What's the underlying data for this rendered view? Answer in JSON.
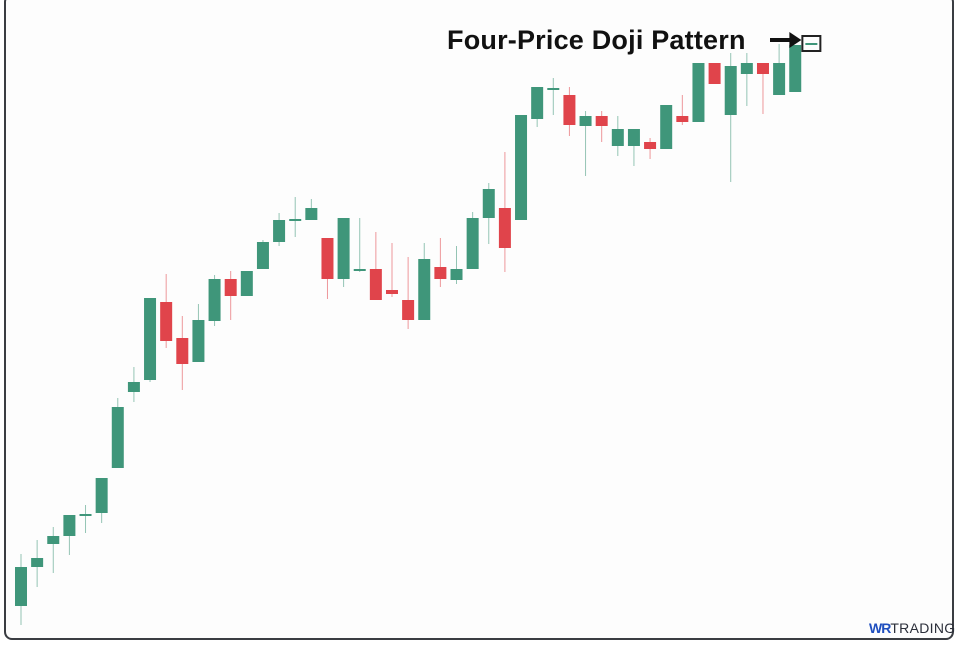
{
  "chart_data": {
    "type": "candlestick",
    "title": "",
    "annotation": "Four-Price Doji Pattern",
    "axes_visible": false,
    "grid": false,
    "colors": {
      "up": "#3f967a",
      "down": "#e0444b",
      "annotation": "#111111"
    },
    "candles": [
      {
        "o": 44,
        "h": 96,
        "l": 25,
        "c": 83
      },
      {
        "o": 83,
        "h": 110,
        "l": 63,
        "c": 92
      },
      {
        "o": 106,
        "h": 123,
        "l": 77,
        "c": 114
      },
      {
        "o": 114,
        "h": 135,
        "l": 95,
        "c": 135
      },
      {
        "o": 136,
        "h": 145,
        "l": 117,
        "c": 136
      },
      {
        "o": 137,
        "h": 172,
        "l": 127,
        "c": 172
      },
      {
        "o": 182,
        "h": 252,
        "l": 182,
        "c": 243
      },
      {
        "o": 258,
        "h": 283,
        "l": 248,
        "c": 268
      },
      {
        "o": 270,
        "h": 352,
        "l": 268,
        "c": 352
      },
      {
        "o": 348,
        "h": 376,
        "l": 302,
        "c": 309
      },
      {
        "o": 312,
        "h": 334,
        "l": 260,
        "c": 286
      },
      {
        "o": 288,
        "h": 346,
        "l": 288,
        "c": 330
      },
      {
        "o": 329,
        "h": 375,
        "l": 324,
        "c": 371
      },
      {
        "o": 371,
        "h": 379,
        "l": 330,
        "c": 354
      },
      {
        "o": 354,
        "h": 379,
        "l": 354,
        "c": 379
      },
      {
        "o": 381,
        "h": 410,
        "l": 381,
        "c": 408
      },
      {
        "o": 408,
        "h": 437,
        "l": 404,
        "c": 430
      },
      {
        "o": 431,
        "h": 453,
        "l": 413,
        "c": 431
      },
      {
        "o": 430,
        "h": 451,
        "l": 430,
        "c": 442
      },
      {
        "o": 412,
        "h": 412,
        "l": 351,
        "c": 371
      },
      {
        "o": 371,
        "h": 432,
        "l": 363,
        "c": 432
      },
      {
        "o": 381,
        "h": 432,
        "l": 378,
        "c": 381
      },
      {
        "o": 381,
        "h": 418,
        "l": 350,
        "c": 350
      },
      {
        "o": 360,
        "h": 407,
        "l": 353,
        "c": 356
      },
      {
        "o": 350,
        "h": 393,
        "l": 321,
        "c": 330
      },
      {
        "o": 330,
        "h": 407,
        "l": 330,
        "c": 391
      },
      {
        "o": 383,
        "h": 412,
        "l": 363,
        "c": 371
      },
      {
        "o": 370,
        "h": 404,
        "l": 366,
        "c": 381
      },
      {
        "o": 381,
        "h": 438,
        "l": 381,
        "c": 432
      },
      {
        "o": 432,
        "h": 467,
        "l": 406,
        "c": 461
      },
      {
        "o": 442,
        "h": 498,
        "l": 378,
        "c": 402
      },
      {
        "o": 430,
        "h": 535,
        "l": 430,
        "c": 535
      },
      {
        "o": 531,
        "h": 563,
        "l": 523,
        "c": 563
      },
      {
        "o": 562,
        "h": 572,
        "l": 535,
        "c": 562
      },
      {
        "o": 555,
        "h": 563,
        "l": 514,
        "c": 525
      },
      {
        "o": 524,
        "h": 539,
        "l": 474,
        "c": 534
      },
      {
        "o": 534,
        "h": 539,
        "l": 508,
        "c": 524
      },
      {
        "o": 504,
        "h": 534,
        "l": 494,
        "c": 521
      },
      {
        "o": 504,
        "h": 521,
        "l": 484,
        "c": 521
      },
      {
        "o": 508,
        "h": 512,
        "l": 491,
        "c": 501
      },
      {
        "o": 501,
        "h": 545,
        "l": 501,
        "c": 545
      },
      {
        "o": 534,
        "h": 555,
        "l": 525,
        "c": 528
      },
      {
        "o": 528,
        "h": 587,
        "l": 528,
        "c": 587
      },
      {
        "o": 587,
        "h": 587,
        "l": 566,
        "c": 566
      },
      {
        "o": 535,
        "h": 597,
        "l": 468,
        "c": 584
      },
      {
        "o": 576,
        "h": 597,
        "l": 544,
        "c": 587
      },
      {
        "o": 587,
        "h": 587,
        "l": 536,
        "c": 576
      },
      {
        "o": 555,
        "h": 606,
        "l": 555,
        "c": 587
      },
      {
        "o": 558,
        "h": 605,
        "l": 558,
        "c": 605
      },
      {
        "o": 606,
        "h": 606,
        "l": 606,
        "c": 606
      }
    ]
  },
  "branding": {
    "logo_wr": "WR",
    "logo_text": "TRADING"
  }
}
